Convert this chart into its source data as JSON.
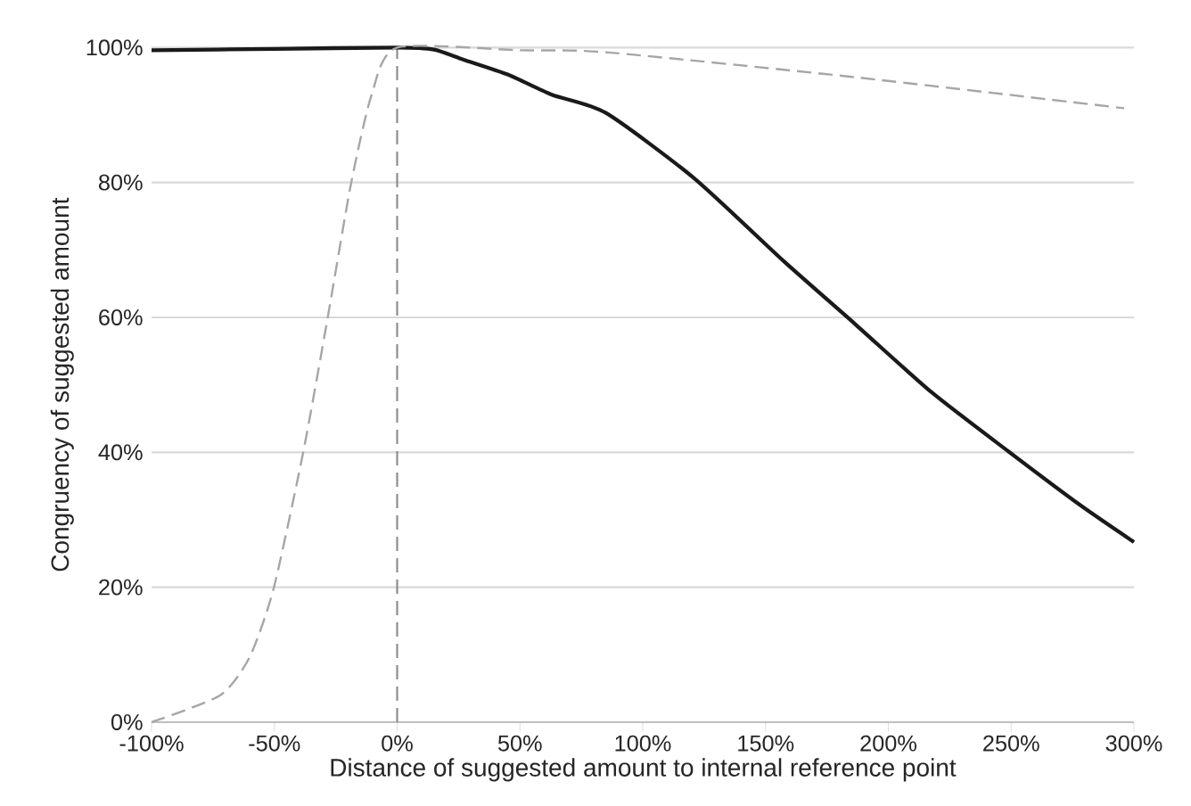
{
  "chart_data": {
    "type": "line",
    "xlabel": "Distance of suggested amount to internal reference point",
    "ylabel": "Congruency of suggested amount",
    "series": [
      {
        "color": "#1a1a1a",
        "line_style": "solid",
        "x": [
          -100,
          -50,
          0,
          15,
          27,
          45,
          63,
          85,
          121,
          157.5,
          186.5,
          217.6,
          249,
          278,
          300
        ],
        "values": [
          99.6,
          99.8,
          100,
          99.7,
          98.2,
          96,
          93,
          90.3,
          80.6,
          68.3,
          59,
          48.9,
          40.1,
          32.2,
          26.7
        ]
      },
      {
        "color": "#a6a6a6",
        "line_style": "dashed",
        "x": [
          -100,
          -72,
          -60,
          -50.3,
          -38.2,
          -28.5,
          -18.8,
          -10.4,
          0,
          50,
          85,
          186.5,
          296
        ],
        "values": [
          0,
          4,
          9.7,
          19.8,
          40.1,
          59.5,
          79.8,
          93,
          100,
          99.6,
          99.3,
          95.6,
          91
        ]
      }
    ],
    "xlim": [
      -100,
      300
    ],
    "xticks": [
      {
        "value": -100,
        "label": "-100%"
      },
      {
        "value": -50,
        "label": "-50%"
      },
      {
        "value": 0,
        "label": "0%"
      },
      {
        "value": 50,
        "label": "50%"
      },
      {
        "value": 100,
        "label": "100%"
      },
      {
        "value": 150,
        "label": "150%"
      },
      {
        "value": 200,
        "label": "200%"
      },
      {
        "value": 250,
        "label": "250%"
      },
      {
        "value": 300,
        "label": "300%"
      }
    ],
    "ylim": [
      0,
      100
    ],
    "yticks": [
      {
        "value": 0,
        "label": "0%"
      },
      {
        "value": 20,
        "label": "20%"
      },
      {
        "value": 40,
        "label": "40%"
      },
      {
        "value": 60,
        "label": "60%"
      },
      {
        "value": 80,
        "label": "80%"
      },
      {
        "value": 100,
        "label": "100%"
      }
    ],
    "grid": "y",
    "marker": "none",
    "ref_lines": [
      {
        "axis": "x",
        "value": 0,
        "color": "#8c8c8c",
        "line_style": "dashed"
      }
    ]
  }
}
